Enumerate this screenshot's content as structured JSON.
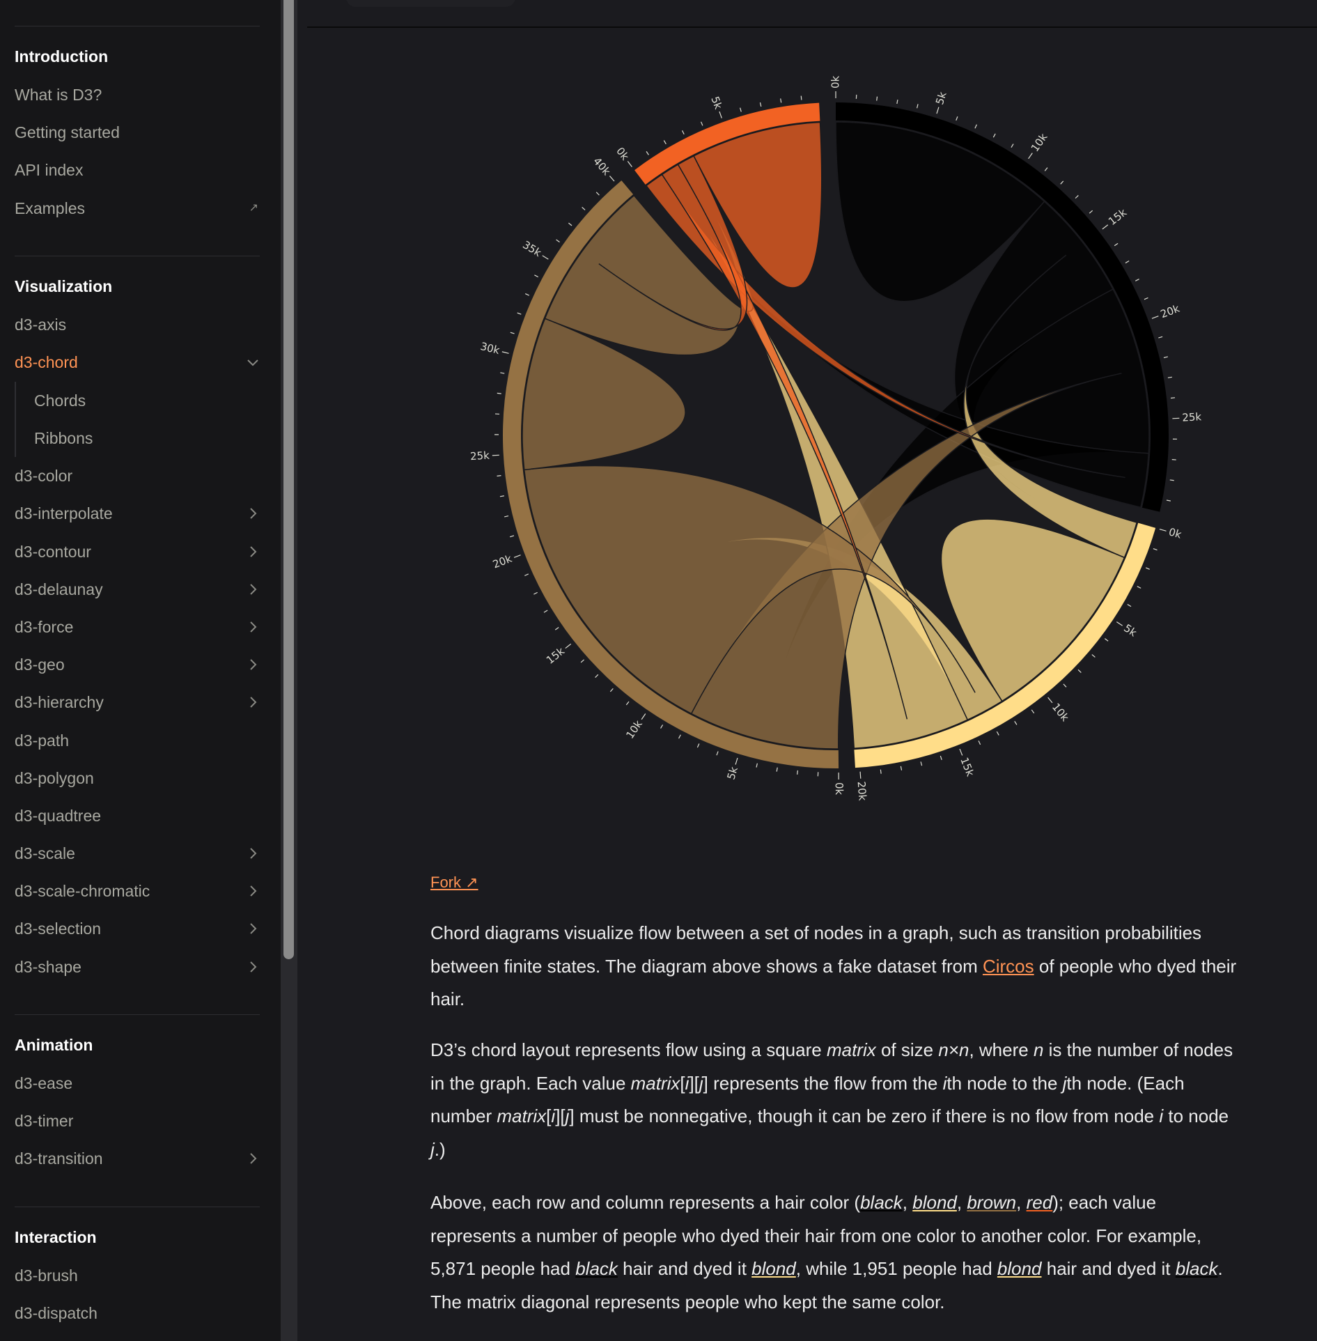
{
  "sidebar": {
    "sections": [
      {
        "title": "Introduction",
        "items": [
          "What is D3?",
          "Getting started",
          "API index",
          "Examples"
        ]
      },
      {
        "title": "Visualization",
        "items": [
          "d3-axis",
          "d3-chord",
          "Chords",
          "Ribbons",
          "d3-color",
          "d3-interpolate",
          "d3-contour",
          "d3-delaunay",
          "d3-force",
          "d3-geo",
          "d3-hierarchy",
          "d3-path",
          "d3-polygon",
          "d3-quadtree",
          "d3-scale",
          "d3-scale-chromatic",
          "d3-selection",
          "d3-shape"
        ]
      },
      {
        "title": "Animation",
        "items": [
          "d3-ease",
          "d3-timer",
          "d3-transition"
        ]
      },
      {
        "title": "Interaction",
        "items": [
          "d3-brush",
          "d3-dispatch"
        ]
      }
    ],
    "examples_icon": "external-link-icon",
    "active_item": "d3-chord"
  },
  "chart_data": {
    "type": "chord",
    "names": [
      "black",
      "blond",
      "brown",
      "red"
    ],
    "colors": [
      "#000000",
      "#ffdd89",
      "#957244",
      "#f26223"
    ],
    "matrix": [
      [
        11975,
        5871,
        8916,
        2868
      ],
      [
        1951,
        10048,
        2060,
        6171
      ],
      [
        8010,
        16145,
        8090,
        8045
      ],
      [
        1013,
        990,
        940,
        6907
      ]
    ],
    "tick_step": 1000,
    "tick_label_step": 5000,
    "tick_label_format": "k"
  },
  "content": {
    "fork_label": "Fork ↗",
    "p1": {
      "a": "Chord diagrams visualize flow between a set of nodes in a graph, such as transition probabilities between finite states. The diagram above shows a fake dataset from ",
      "link": "Circos",
      "b": " of people who dyed their hair."
    },
    "p2": {
      "t1": "D3’s chord layout represents flow using a square ",
      "matrix": "matrix",
      "t2": " of size ",
      "nxn": "n×n",
      "t3": ", where ",
      "n": "n",
      "t4": " is the number of nodes in the graph. Each value ",
      "m2": "matrix",
      "t5": "[",
      "i1": "i",
      "t6": "][",
      "j1": "j",
      "t7": "] represents the flow from the ",
      "i2": "i",
      "t8": "th node to the ",
      "j2": "j",
      "t9": "th node. (Each number ",
      "m3": "matrix",
      "t10": "[",
      "i3": "i",
      "t11": "][",
      "j3": "j",
      "t12": "] must be nonnegative, though it can be zero if there is no flow from node ",
      "i4": "i",
      "t13": " to node ",
      "j4": "j",
      "t14": ".)"
    },
    "p3": {
      "t1": "Above, each row and column represents a hair color (",
      "black": "black",
      "c1": ", ",
      "blond": "blond",
      "c2": ", ",
      "brown": "brown",
      "c3": ", ",
      "red": "red",
      "t2": "); each value represents a number of people who dyed their hair from one color to another color. For example, 5,871 people had ",
      "black2": "black",
      "t3": " hair and dyed it ",
      "blond2": "blond",
      "t4": ", while 1,951 people had ",
      "blond3": "blond",
      "t5": " hair and dyed it ",
      "black3": "black",
      "t6": ". The matrix diagonal represents people who kept the same color."
    }
  }
}
